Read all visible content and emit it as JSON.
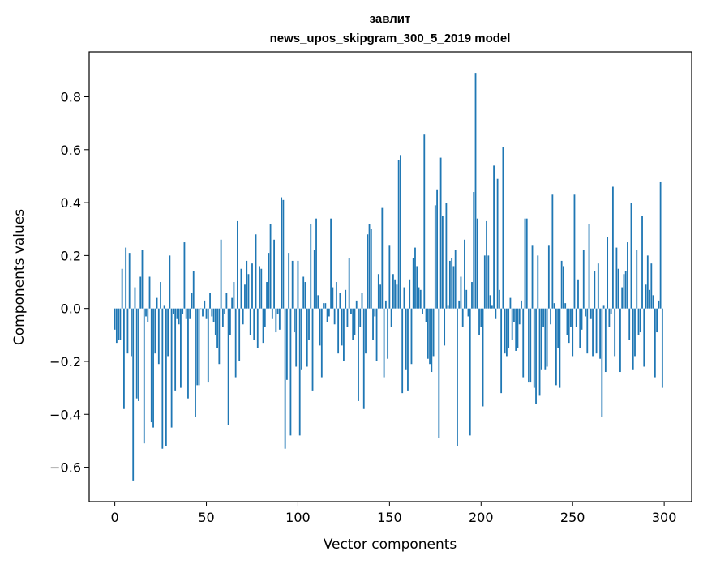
{
  "chart_data": {
    "type": "bar",
    "title": "завлит",
    "subtitle": "news_upos_skipgram_300_5_2019 model",
    "xlabel": "Vector components",
    "ylabel": "Components values",
    "xlim": [
      -14,
      315
    ],
    "ylim": [
      -0.73,
      0.97
    ],
    "xticks": [
      0,
      50,
      100,
      150,
      200,
      250,
      300
    ],
    "yticks": [
      -0.6,
      -0.4,
      -0.2,
      0.0,
      0.2,
      0.4,
      0.6,
      0.8
    ],
    "ytick_labels": [
      "−0.6",
      "−0.4",
      "−0.2",
      "0.0",
      "0.2",
      "0.4",
      "0.6",
      "0.8"
    ],
    "bar_color": "#1f77b4",
    "values": [
      -0.08,
      -0.13,
      -0.12,
      -0.12,
      0.15,
      -0.38,
      0.23,
      -0.17,
      0.21,
      -0.18,
      -0.65,
      0.08,
      -0.34,
      -0.35,
      0.12,
      0.22,
      -0.51,
      -0.03,
      -0.05,
      0.12,
      -0.43,
      -0.45,
      -0.17,
      0.04,
      -0.21,
      0.1,
      -0.53,
      0.01,
      -0.52,
      -0.18,
      0.2,
      -0.45,
      -0.02,
      -0.31,
      -0.04,
      -0.06,
      -0.3,
      -0.02,
      0.25,
      -0.04,
      -0.34,
      -0.04,
      0.06,
      0.14,
      -0.41,
      -0.29,
      -0.29,
      0.0,
      -0.03,
      0.03,
      -0.04,
      -0.28,
      0.06,
      -0.03,
      -0.05,
      -0.1,
      -0.15,
      -0.21,
      0.26,
      -0.07,
      -0.02,
      0.06,
      -0.44,
      -0.1,
      0.04,
      0.1,
      -0.26,
      0.33,
      -0.2,
      0.15,
      -0.06,
      0.09,
      0.18,
      0.13,
      -0.1,
      0.17,
      -0.12,
      0.28,
      -0.15,
      0.16,
      0.15,
      -0.13,
      -0.07,
      0.1,
      0.21,
      0.32,
      -0.04,
      0.26,
      -0.09,
      -0.02,
      -0.08,
      0.42,
      0.41,
      -0.53,
      -0.27,
      0.21,
      -0.48,
      0.18,
      -0.09,
      -0.22,
      0.18,
      -0.48,
      -0.23,
      0.12,
      0.1,
      -0.22,
      -0.12,
      0.32,
      -0.31,
      0.22,
      0.34,
      0.05,
      -0.14,
      -0.26,
      0.02,
      0.02,
      -0.05,
      -0.03,
      0.34,
      0.08,
      -0.06,
      0.1,
      -0.17,
      0.06,
      -0.14,
      -0.2,
      0.07,
      -0.07,
      0.19,
      -0.02,
      -0.12,
      -0.1,
      0.03,
      -0.35,
      -0.07,
      0.06,
      -0.38,
      -0.17,
      0.28,
      0.32,
      0.3,
      -0.12,
      -0.03,
      -0.2,
      0.13,
      0.09,
      0.38,
      -0.26,
      0.03,
      -0.19,
      0.24,
      -0.07,
      0.13,
      0.11,
      0.09,
      0.56,
      0.58,
      -0.32,
      0.08,
      -0.23,
      -0.31,
      0.11,
      -0.21,
      0.19,
      0.23,
      0.16,
      0.08,
      0.07,
      -0.02,
      0.66,
      -0.05,
      -0.19,
      -0.21,
      -0.24,
      -0.18,
      0.39,
      0.45,
      -0.49,
      0.57,
      0.35,
      -0.14,
      0.4,
      0.01,
      0.18,
      0.19,
      0.16,
      0.22,
      -0.52,
      0.03,
      0.12,
      -0.07,
      0.26,
      0.07,
      -0.03,
      -0.48,
      0.1,
      0.44,
      0.89,
      0.34,
      -0.1,
      -0.07,
      -0.37,
      0.2,
      0.33,
      0.2,
      0.05,
      0.01,
      0.54,
      -0.04,
      0.49,
      0.07,
      -0.32,
      0.61,
      -0.17,
      -0.18,
      -0.15,
      0.04,
      -0.12,
      -0.05,
      -0.16,
      -0.15,
      -0.06,
      0.03,
      -0.26,
      0.34,
      0.34,
      -0.28,
      -0.28,
      0.24,
      -0.3,
      -0.36,
      0.2,
      -0.33,
      -0.23,
      -0.07,
      -0.23,
      -0.22,
      0.24,
      -0.06,
      0.43,
      0.02,
      -0.29,
      -0.15,
      -0.3,
      0.18,
      0.16,
      0.02,
      -0.1,
      -0.13,
      -0.07,
      -0.18,
      0.43,
      -0.07,
      0.11,
      -0.15,
      -0.08,
      0.22,
      -0.03,
      -0.17,
      0.32,
      -0.04,
      -0.18,
      0.14,
      -0.17,
      0.17,
      -0.19,
      -0.41,
      0.01,
      -0.24,
      0.27,
      -0.07,
      -0.02,
      0.46,
      -0.18,
      0.23,
      0.15,
      -0.24,
      0.08,
      0.13,
      0.14,
      0.25,
      -0.12,
      0.4,
      -0.23,
      -0.18,
      0.22,
      -0.1,
      -0.09,
      0.35,
      -0.22,
      0.09,
      0.2,
      0.07,
      0.17,
      0.05,
      -0.26,
      -0.09,
      0.03,
      0.48,
      -0.3
    ]
  }
}
